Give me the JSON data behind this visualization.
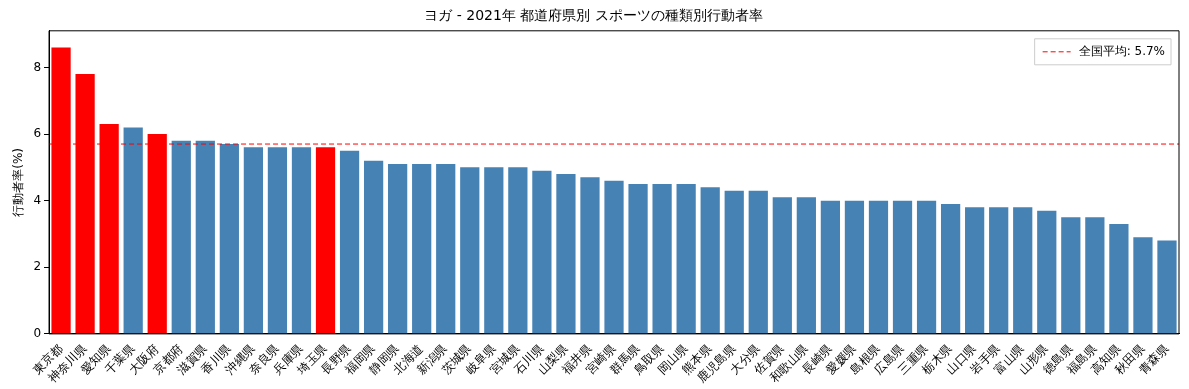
{
  "chart_data": {
    "type": "bar",
    "title": "ヨガ - 2021年 都道府県別 スポーツの種類別行動者率",
    "ylabel": "行動者率(%)",
    "categories": [
      "東京都",
      "神奈川県",
      "愛知県",
      "千葉県",
      "大阪府",
      "京都府",
      "滋賀県",
      "香川県",
      "沖縄県",
      "奈良県",
      "兵庫県",
      "埼玉県",
      "長野県",
      "福岡県",
      "静岡県",
      "北海道",
      "新潟県",
      "茨城県",
      "岐阜県",
      "宮城県",
      "石川県",
      "山梨県",
      "福井県",
      "宮崎県",
      "群馬県",
      "鳥取県",
      "岡山県",
      "熊本県",
      "鹿児島県",
      "大分県",
      "佐賀県",
      "和歌山県",
      "長崎県",
      "愛媛県",
      "島根県",
      "広島県",
      "三重県",
      "栃木県",
      "山口県",
      "岩手県",
      "富山県",
      "山形県",
      "徳島県",
      "福島県",
      "高知県",
      "秋田県",
      "青森県"
    ],
    "values": [
      8.6,
      7.8,
      6.3,
      6.2,
      6.0,
      5.8,
      5.8,
      5.7,
      5.6,
      5.6,
      5.6,
      5.6,
      5.5,
      5.2,
      5.1,
      5.1,
      5.1,
      5.0,
      5.0,
      5.0,
      4.9,
      4.8,
      4.7,
      4.6,
      4.5,
      4.5,
      4.5,
      4.4,
      4.3,
      4.3,
      4.1,
      4.1,
      4.0,
      4.0,
      4.0,
      4.0,
      4.0,
      3.9,
      3.8,
      3.8,
      3.8,
      3.7,
      3.5,
      3.5,
      3.3,
      2.9,
      2.8
    ],
    "colors": [
      "#ff0000",
      "#ff0000",
      "#ff0000",
      "#4682b4",
      "#ff0000",
      "#4682b4",
      "#4682b4",
      "#4682b4",
      "#4682b4",
      "#4682b4",
      "#4682b4",
      "#ff0000",
      "#4682b4",
      "#4682b4",
      "#4682b4",
      "#4682b4",
      "#4682b4",
      "#4682b4",
      "#4682b4",
      "#4682b4",
      "#4682b4",
      "#4682b4",
      "#4682b4",
      "#4682b4",
      "#4682b4",
      "#4682b4",
      "#4682b4",
      "#4682b4",
      "#4682b4",
      "#4682b4",
      "#4682b4",
      "#4682b4",
      "#4682b4",
      "#4682b4",
      "#4682b4",
      "#4682b4",
      "#4682b4",
      "#4682b4",
      "#4682b4",
      "#4682b4",
      "#4682b4",
      "#4682b4",
      "#4682b4",
      "#4682b4",
      "#4682b4",
      "#4682b4",
      "#4682b4"
    ],
    "ylim": [
      0,
      9.1
    ],
    "yticks": [
      0,
      2,
      4,
      6,
      8
    ],
    "grid": false,
    "legend": "top right",
    "ref_lines": [
      {
        "axis": "y",
        "value": 5.7,
        "label": "全国平均: 5.7%",
        "color": "#ff0000",
        "line_style": "dashed"
      }
    ]
  }
}
